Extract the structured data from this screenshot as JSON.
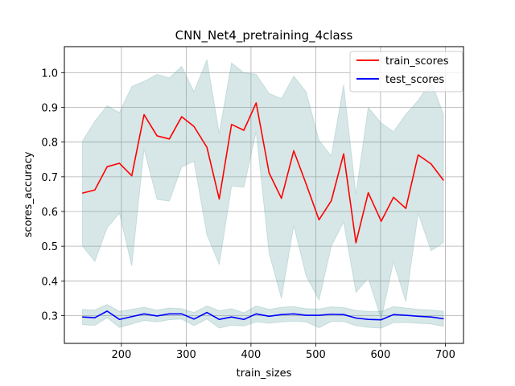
{
  "chart_data": {
    "type": "line",
    "title": "CNN_Net4_pretraining_4class",
    "xlabel": "train_sizes",
    "ylabel": "scores_accuracy",
    "xlim": [
      112,
      728
    ],
    "ylim": [
      0.22,
      1.075
    ],
    "xticks": [
      200,
      300,
      400,
      500,
      600,
      700
    ],
    "yticks": [
      0.3,
      0.4,
      0.5,
      0.6,
      0.7,
      0.8,
      0.9,
      1.0
    ],
    "xtick_labels": [
      "200",
      "300",
      "400",
      "500",
      "600",
      "700"
    ],
    "ytick_labels": [
      "0.3",
      "0.4",
      "0.5",
      "0.6",
      "0.7",
      "0.8",
      "0.9",
      "1.0"
    ],
    "grid": true,
    "legend_position": "top-right",
    "x": [
      140,
      159,
      178,
      197,
      216,
      235,
      255,
      274,
      293,
      312,
      332,
      351,
      370,
      389,
      408,
      428,
      447,
      466,
      485,
      505,
      524,
      543,
      562,
      581,
      601,
      620,
      639,
      658,
      678,
      697
    ],
    "series": [
      {
        "name": "train_scores",
        "color": "#ff0000",
        "values": [
          0.653,
          0.662,
          0.729,
          0.739,
          0.703,
          0.879,
          0.818,
          0.809,
          0.873,
          0.845,
          0.785,
          0.636,
          0.851,
          0.834,
          0.913,
          0.711,
          0.638,
          0.775,
          0.68,
          0.576,
          0.631,
          0.766,
          0.51,
          0.654,
          0.572,
          0.641,
          0.609,
          0.763,
          0.737,
          0.69
        ],
        "band_upper": [
          0.803,
          0.86,
          0.905,
          0.885,
          0.96,
          0.975,
          0.995,
          0.985,
          1.018,
          0.945,
          1.037,
          0.825,
          1.028,
          1.0,
          0.995,
          0.94,
          0.925,
          0.99,
          0.945,
          0.805,
          0.76,
          0.965,
          0.65,
          0.9,
          0.855,
          0.83,
          0.88,
          0.92,
          0.975,
          0.88
        ],
        "band_lower": [
          0.5,
          0.456,
          0.553,
          0.595,
          0.443,
          0.78,
          0.635,
          0.63,
          0.728,
          0.745,
          0.533,
          0.447,
          0.673,
          0.67,
          0.83,
          0.48,
          0.35,
          0.56,
          0.415,
          0.345,
          0.5,
          0.57,
          0.367,
          0.408,
          0.29,
          0.455,
          0.34,
          0.595,
          0.487,
          0.51
        ],
        "band_color": "#5f9ea0"
      },
      {
        "name": "test_scores",
        "color": "#0000ff",
        "values": [
          0.296,
          0.294,
          0.313,
          0.289,
          0.297,
          0.305,
          0.299,
          0.305,
          0.305,
          0.29,
          0.309,
          0.289,
          0.296,
          0.289,
          0.305,
          0.298,
          0.303,
          0.305,
          0.301,
          0.301,
          0.304,
          0.303,
          0.293,
          0.289,
          0.288,
          0.303,
          0.301,
          0.298,
          0.296,
          0.291
        ],
        "band_upper": [
          0.318,
          0.316,
          0.332,
          0.312,
          0.318,
          0.324,
          0.316,
          0.322,
          0.32,
          0.309,
          0.328,
          0.314,
          0.32,
          0.308,
          0.328,
          0.318,
          0.324,
          0.326,
          0.32,
          0.319,
          0.325,
          0.323,
          0.315,
          0.312,
          0.312,
          0.326,
          0.322,
          0.318,
          0.316,
          0.313
        ],
        "band_lower": [
          0.274,
          0.272,
          0.294,
          0.266,
          0.276,
          0.286,
          0.282,
          0.288,
          0.29,
          0.271,
          0.29,
          0.264,
          0.272,
          0.27,
          0.282,
          0.278,
          0.282,
          0.284,
          0.282,
          0.265,
          0.283,
          0.283,
          0.271,
          0.266,
          0.264,
          0.28,
          0.28,
          0.278,
          0.276,
          0.269
        ],
        "band_color": "#5f9ea0"
      }
    ]
  }
}
